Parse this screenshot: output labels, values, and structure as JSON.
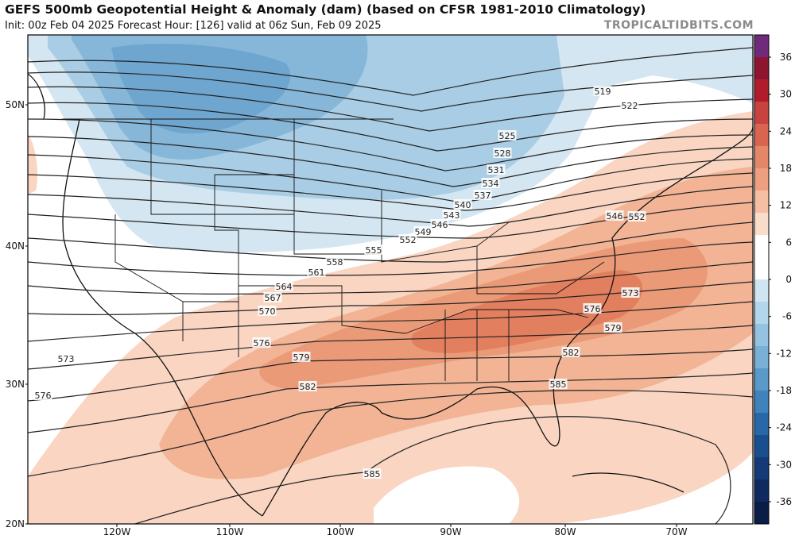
{
  "header": {
    "title": "GEFS 500mb Geopotential Height & Anomaly (dam) (based on CFSR 1981-2010 Climatology)",
    "subtitle": "Init: 00z Feb 04 2025   Forecast Hour: [126]   valid at 06z Sun, Feb 09 2025",
    "brand": "TROPICALTIDBITS.COM"
  },
  "map": {
    "lat_labels": [
      "50N",
      "40N",
      "30N",
      "20N"
    ],
    "lon_labels": [
      "120W",
      "110W",
      "100W",
      "90W",
      "80W",
      "70W"
    ],
    "contour_labels": [
      "519",
      "522",
      "525",
      "528",
      "531",
      "534",
      "537",
      "540",
      "543",
      "546",
      "546",
      "549",
      "552",
      "552",
      "555",
      "558",
      "561",
      "564",
      "567",
      "570",
      "573",
      "573",
      "576",
      "576",
      "576",
      "579",
      "579",
      "582",
      "582",
      "585",
      "585"
    ],
    "colors": {
      "ocean_background": "#ffffff",
      "coastline": "#111111",
      "height_contour": "#222222"
    }
  },
  "colorbar": {
    "ticks": [
      "36",
      "30",
      "24",
      "18",
      "12",
      "6",
      "0",
      "-6",
      "-12",
      "-18",
      "-24",
      "-30",
      "-36"
    ],
    "colors": [
      "#6f2a7b",
      "#8e1530",
      "#b11c2c",
      "#c8423f",
      "#d96450",
      "#e48768",
      "#ee9f80",
      "#f6bea2",
      "#fadccb",
      "#ffffff",
      "#ffffff",
      "#cfe6f2",
      "#b2d6ea",
      "#94c3e1",
      "#78b0d6",
      "#5a9ac9",
      "#3f82bc",
      "#2868a8",
      "#1a4f8f",
      "#143b78",
      "#0f2a5e",
      "#0a1d47"
    ]
  }
}
